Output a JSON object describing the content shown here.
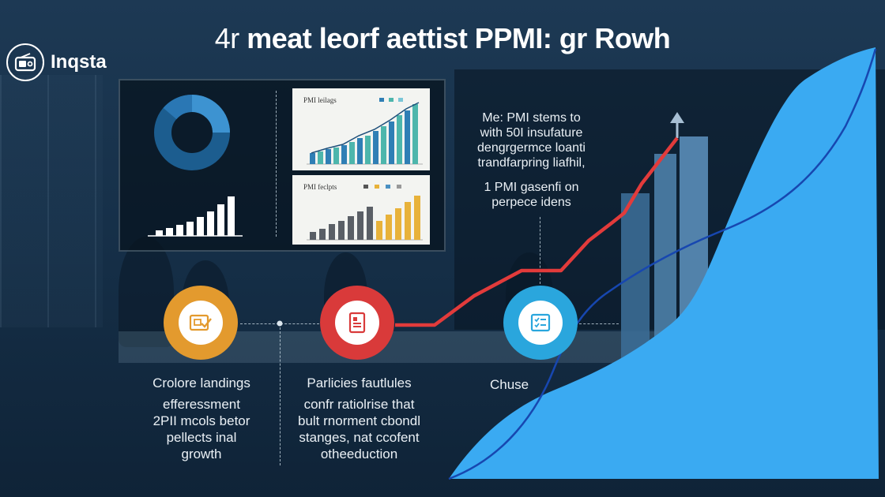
{
  "title": {
    "part1": "4r",
    "part2": " meat leorf aettist PPMI: gr Rowh"
  },
  "logo": {
    "text": "Inqsta"
  },
  "panels": {
    "chart1_title": "PMI leilags",
    "chart2_title": "PMI feclpts"
  },
  "callout": {
    "lines": [
      "Me: PMI stems to",
      "with 50I insufature",
      "dengrgermce loanti",
      "trandfarpring liafhil,",
      "1 PMI gasenfi on",
      "perpece idens"
    ]
  },
  "steps": [
    {
      "icon": "tablet-check-icon",
      "color": "#e39a2e",
      "lines": [
        "Crolore landings",
        "efferessment",
        "2PII mcols betor",
        "pellects inal",
        "growth"
      ]
    },
    {
      "icon": "document-icon",
      "color": "#d93a3a",
      "lines": [
        "Parlicies fautlules",
        "confr ratiolrise that",
        "bult rnorment cbondl",
        "stanges, nat ccofent",
        "otheeduction"
      ]
    },
    {
      "icon": "checklist-icon",
      "color": "#2aa6dd",
      "lines": [
        "Chuse"
      ]
    }
  ],
  "colors": {
    "accent_blue": "#3aaaf2",
    "trend_red": "#e23b3b",
    "curve_dark_blue": "#1747b0"
  }
}
